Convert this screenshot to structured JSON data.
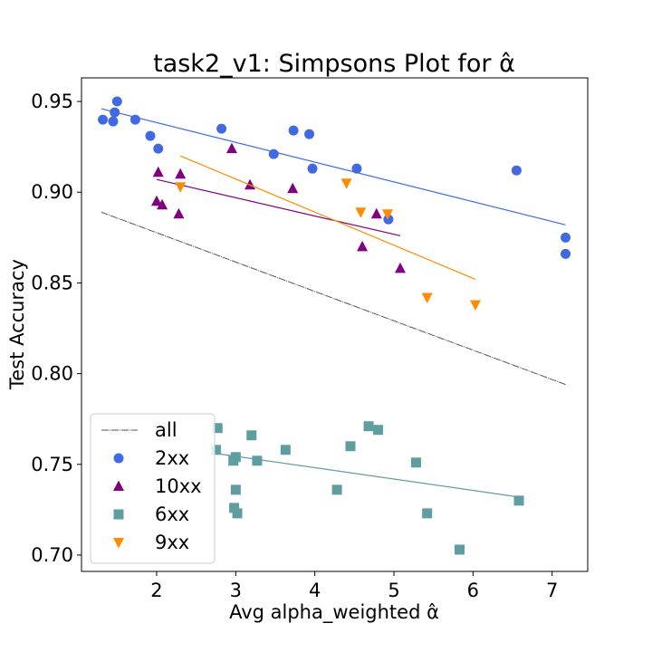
{
  "chart_data": {
    "type": "scatter",
    "title": "task2_v1: Simpsons Plot for α̂",
    "xlabel": "Avg alpha_weighted α̂",
    "ylabel": "Test Accuracy",
    "xlim": [
      1.05,
      7.45
    ],
    "ylim": [
      0.691,
      0.963
    ],
    "xticks": [
      2,
      3,
      4,
      5,
      6,
      7
    ],
    "yticks": [
      0.7,
      0.75,
      0.8,
      0.85,
      0.9,
      0.95
    ],
    "ytick_labels": [
      "0.70",
      "0.75",
      "0.80",
      "0.85",
      "0.90",
      "0.95"
    ],
    "grid": false,
    "legend_position": "lower-left",
    "series": [
      {
        "name": "all",
        "kind": "line",
        "color": "#555555",
        "line": [
          [
            1.3,
            0.889
          ],
          [
            7.17,
            0.794
          ]
        ]
      },
      {
        "name": "2xx",
        "kind": "scatter",
        "marker": "circle",
        "color": "#4169e1",
        "points": [
          [
            1.32,
            0.94
          ],
          [
            1.45,
            0.939
          ],
          [
            1.47,
            0.944
          ],
          [
            1.5,
            0.95
          ],
          [
            1.73,
            0.94
          ],
          [
            1.92,
            0.931
          ],
          [
            2.02,
            0.924
          ],
          [
            2.82,
            0.935
          ],
          [
            3.48,
            0.921
          ],
          [
            3.73,
            0.934
          ],
          [
            3.93,
            0.932
          ],
          [
            3.97,
            0.913
          ],
          [
            4.53,
            0.913
          ],
          [
            4.93,
            0.885
          ],
          [
            6.55,
            0.912
          ],
          [
            7.17,
            0.875
          ],
          [
            7.17,
            0.866
          ]
        ],
        "fit": [
          [
            1.3,
            0.946
          ],
          [
            7.17,
            0.882
          ]
        ]
      },
      {
        "name": "10xx",
        "kind": "scatter",
        "marker": "triangle-up",
        "color": "#800080",
        "points": [
          [
            2.0,
            0.895
          ],
          [
            2.02,
            0.911
          ],
          [
            2.07,
            0.893
          ],
          [
            2.28,
            0.888
          ],
          [
            2.3,
            0.91
          ],
          [
            2.95,
            0.924
          ],
          [
            3.18,
            0.904
          ],
          [
            3.72,
            0.902
          ],
          [
            4.6,
            0.87
          ],
          [
            4.78,
            0.888
          ],
          [
            5.08,
            0.858
          ]
        ],
        "fit": [
          [
            2.0,
            0.907
          ],
          [
            5.08,
            0.876
          ]
        ]
      },
      {
        "name": "6xx",
        "kind": "scatter",
        "marker": "square",
        "color": "#5f9ea0",
        "points": [
          [
            2.77,
            0.77
          ],
          [
            2.75,
            0.758
          ],
          [
            2.97,
            0.752
          ],
          [
            2.98,
            0.726
          ],
          [
            3.0,
            0.754
          ],
          [
            3.0,
            0.736
          ],
          [
            3.02,
            0.723
          ],
          [
            3.2,
            0.766
          ],
          [
            3.27,
            0.752
          ],
          [
            3.63,
            0.758
          ],
          [
            4.28,
            0.736
          ],
          [
            4.45,
            0.76
          ],
          [
            4.68,
            0.771
          ],
          [
            4.8,
            0.769
          ],
          [
            5.28,
            0.751
          ],
          [
            5.42,
            0.723
          ],
          [
            5.83,
            0.703
          ],
          [
            6.58,
            0.73
          ]
        ],
        "fit": [
          [
            2.75,
            0.756
          ],
          [
            6.58,
            0.732
          ]
        ]
      },
      {
        "name": "9xx",
        "kind": "scatter",
        "marker": "triangle-down",
        "color": "#ff8c00",
        "points": [
          [
            2.3,
            0.903
          ],
          [
            4.4,
            0.905
          ],
          [
            4.58,
            0.889
          ],
          [
            4.92,
            0.888
          ],
          [
            5.42,
            0.842
          ],
          [
            6.03,
            0.838
          ]
        ],
        "fit": [
          [
            2.3,
            0.92
          ],
          [
            6.03,
            0.852
          ]
        ]
      }
    ]
  }
}
